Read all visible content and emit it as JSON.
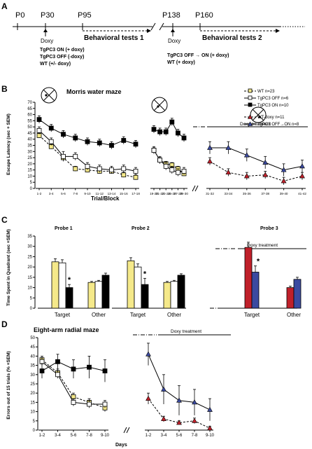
{
  "colors": {
    "wt": "#f5e98a",
    "tg_off": "#ffffff",
    "tg_on": "#000000",
    "wt_doxy": "#c0202a",
    "tg_off_on": "#3b4aa0"
  },
  "panel_a": {
    "label": "A",
    "timepoints": [
      "P0",
      "P30",
      "P95",
      "P138",
      "P160"
    ],
    "doxy_label_1": "Doxy",
    "doxy_label_2": "Doxy",
    "behavioral_tests_1": "Behavioral tests 1",
    "behavioral_tests_2": "Behavioral tests 2",
    "groups_1": [
      "TgPC3 ON (+ doxy)",
      "TgPC3 OFF (-doxy)",
      "WT (+/- doxy)"
    ],
    "groups_2": [
      "TgPC3 OFF → ON (+ doxy)",
      "WT (+ doxy)"
    ]
  },
  "panel_b": {
    "label": "B",
    "title": "Morris water maze",
    "xlabel": "Trial/Block",
    "doxy_treatment": "Doxy treatment",
    "legend": [
      "WT n=23",
      "TgPC3 OFF n=6",
      "TgPC3 ON n=10",
      "WT-doxy n=11",
      "TgPC3 OFF→ON n=8"
    ]
  },
  "panel_c": {
    "label": "C",
    "probe_titles": [
      "Probe 1",
      "Probe 2",
      "Probe 3"
    ],
    "doxy_treatment": "Doxy treatment",
    "xcats": [
      "Target",
      "Other"
    ],
    "sig": "*"
  },
  "panel_d": {
    "label": "D",
    "title": "Eight-arm radial maze",
    "xlabel": "Days",
    "doxy_treatment": "Doxy treatment"
  },
  "chart_data": [
    {
      "type": "line",
      "panel": "B",
      "title": "Morris water maze",
      "xlabel": "Trial/Block",
      "ylabel": "Escape Latency (sec + SEM)",
      "ylim": [
        0,
        70
      ],
      "yticks": [
        0,
        5,
        10,
        15,
        20,
        25,
        30,
        35,
        40,
        45,
        50,
        55,
        60,
        65,
        70
      ],
      "segments": [
        {
          "categories": [
            "1-2",
            "3-4",
            "5-6",
            "7-8",
            "9-10",
            "11-12",
            "13-14",
            "15-16",
            "17-18"
          ],
          "series": [
            {
              "name": "WT n=23",
              "values": [
                43,
                34,
                25,
                16,
                15,
                14,
                14,
                11,
                9
              ],
              "errors": [
                2,
                2,
                2,
                2,
                2,
                2,
                2,
                2,
                2
              ]
            },
            {
              "name": "TgPC3 OFF n=6",
              "values": [
                47,
                38,
                26,
                26,
                18,
                16,
                15,
                16,
                14
              ],
              "errors": [
                3,
                3,
                4,
                3,
                3,
                3,
                3,
                3,
                3
              ]
            },
            {
              "name": "TgPC3 ON n=10",
              "values": [
                56,
                49,
                44,
                41,
                38,
                37,
                35,
                39,
                36
              ],
              "errors": [
                3,
                3,
                3,
                3,
                3,
                3,
                3,
                3,
                3
              ]
            }
          ]
        },
        {
          "categories": [
            "19-20",
            "21-22",
            "23-24",
            "25-26",
            "27-28",
            "29-30"
          ],
          "series": [
            {
              "name": "WT n=23",
              "values": [
                31,
                23,
                20,
                19,
                16,
                12
              ],
              "errors": [
                2,
                2,
                2,
                2,
                2,
                2
              ]
            },
            {
              "name": "TgPC3 OFF n=6",
              "values": [
                31,
                23,
                18,
                15,
                13,
                14
              ],
              "errors": [
                3,
                3,
                3,
                3,
                3,
                3
              ]
            },
            {
              "name": "TgPC3 ON n=10",
              "values": [
                48,
                46,
                46,
                54,
                45,
                41
              ],
              "errors": [
                3,
                3,
                3,
                3,
                3,
                3
              ]
            }
          ]
        },
        {
          "categories": [
            "31-32",
            "33-34",
            "35-36",
            "37-38",
            "39-40",
            "41-42"
          ],
          "series": [
            {
              "name": "WT-doxy n=11",
              "values": [
                22,
                13,
                10,
                11,
                6,
                10
              ],
              "errors": [
                3,
                3,
                3,
                3,
                3,
                3
              ]
            },
            {
              "name": "TgPC3 OFF→ON n=8",
              "values": [
                33,
                33,
                27,
                21,
                15,
                18
              ],
              "errors": [
                5,
                5,
                5,
                5,
                5,
                5
              ]
            }
          ]
        }
      ]
    },
    {
      "type": "bar",
      "panel": "C",
      "ylabel": "Time Spent in Quadrant (sec +SEM)",
      "ylim": [
        0,
        35
      ],
      "yticks": [
        0,
        5,
        10,
        15,
        20,
        25,
        30,
        35
      ],
      "probes": [
        {
          "title": "Probe 1",
          "categories": [
            "Target",
            "Other"
          ],
          "series": [
            {
              "name": "WT n=23",
              "values": [
                22.5,
                12.5
              ],
              "errors": [
                1.5,
                0.5
              ]
            },
            {
              "name": "TgPC3 OFF n=6",
              "values": [
                22,
                13
              ],
              "errors": [
                1.5,
                0.5
              ]
            },
            {
              "name": "TgPC3 ON n=10",
              "values": [
                10,
                16
              ],
              "errors": [
                1.5,
                1
              ]
            }
          ]
        },
        {
          "title": "Probe 2",
          "categories": [
            "Target",
            "Other"
          ],
          "series": [
            {
              "name": "WT n=23",
              "values": [
                23,
                12.5
              ],
              "errors": [
                1.5,
                0.5
              ]
            },
            {
              "name": "TgPC3 OFF n=6",
              "values": [
                20,
                13
              ],
              "errors": [
                1.5,
                0.5
              ]
            },
            {
              "name": "TgPC3 ON n=10",
              "values": [
                11.5,
                16
              ],
              "errors": [
                3,
                0.7
              ]
            }
          ]
        },
        {
          "title": "Probe 3",
          "categories": [
            "Target",
            "Other"
          ],
          "series": [
            {
              "name": "WT-doxy n=11",
              "values": [
                29.5,
                10
              ],
              "errors": [
                2.5,
                0.7
              ]
            },
            {
              "name": "TgPC3 OFF→ON n=8",
              "values": [
                17.5,
                14
              ],
              "errors": [
                3,
                1
              ]
            }
          ]
        }
      ]
    },
    {
      "type": "line",
      "panel": "D",
      "title": "Eight-arm radial maze",
      "xlabel": "Days",
      "ylabel": "Errors out of 15 trials (% +SEM)",
      "ylim": [
        0,
        50
      ],
      "yticks": [
        0,
        5,
        10,
        15,
        20,
        25,
        30,
        35,
        40,
        45,
        50
      ],
      "segments": [
        {
          "categories": [
            "1-2",
            "3-4",
            "5-6",
            "7-8",
            "9-10"
          ],
          "series": [
            {
              "name": "WT n=23",
              "values": [
                38,
                31,
                18,
                15,
                12
              ],
              "errors": [
                2,
                2,
                2,
                2,
                2
              ]
            },
            {
              "name": "TgPC3 OFF n=6",
              "values": [
                37,
                30,
                15,
                14,
                14
              ],
              "errors": [
                2,
                2,
                2,
                2,
                2
              ]
            },
            {
              "name": "TgPC3 ON n=10",
              "values": [
                32,
                37,
                33,
                34,
                32
              ],
              "errors": [
                4,
                4,
                5,
                6,
                6
              ]
            }
          ]
        },
        {
          "categories": [
            "1-2",
            "3-4",
            "5-6",
            "7-8",
            "9-10"
          ],
          "series": [
            {
              "name": "WT-doxy n=11",
              "values": [
                17,
                6,
                4,
                5,
                1
              ],
              "errors": [
                3,
                1.5,
                1,
                1.5,
                1
              ]
            },
            {
              "name": "TgPC3 OFF→ON n=8",
              "values": [
                41,
                22,
                16,
                15,
                11
              ],
              "errors": [
                6,
                8,
                8,
                7,
                6
              ]
            }
          ]
        }
      ]
    }
  ]
}
